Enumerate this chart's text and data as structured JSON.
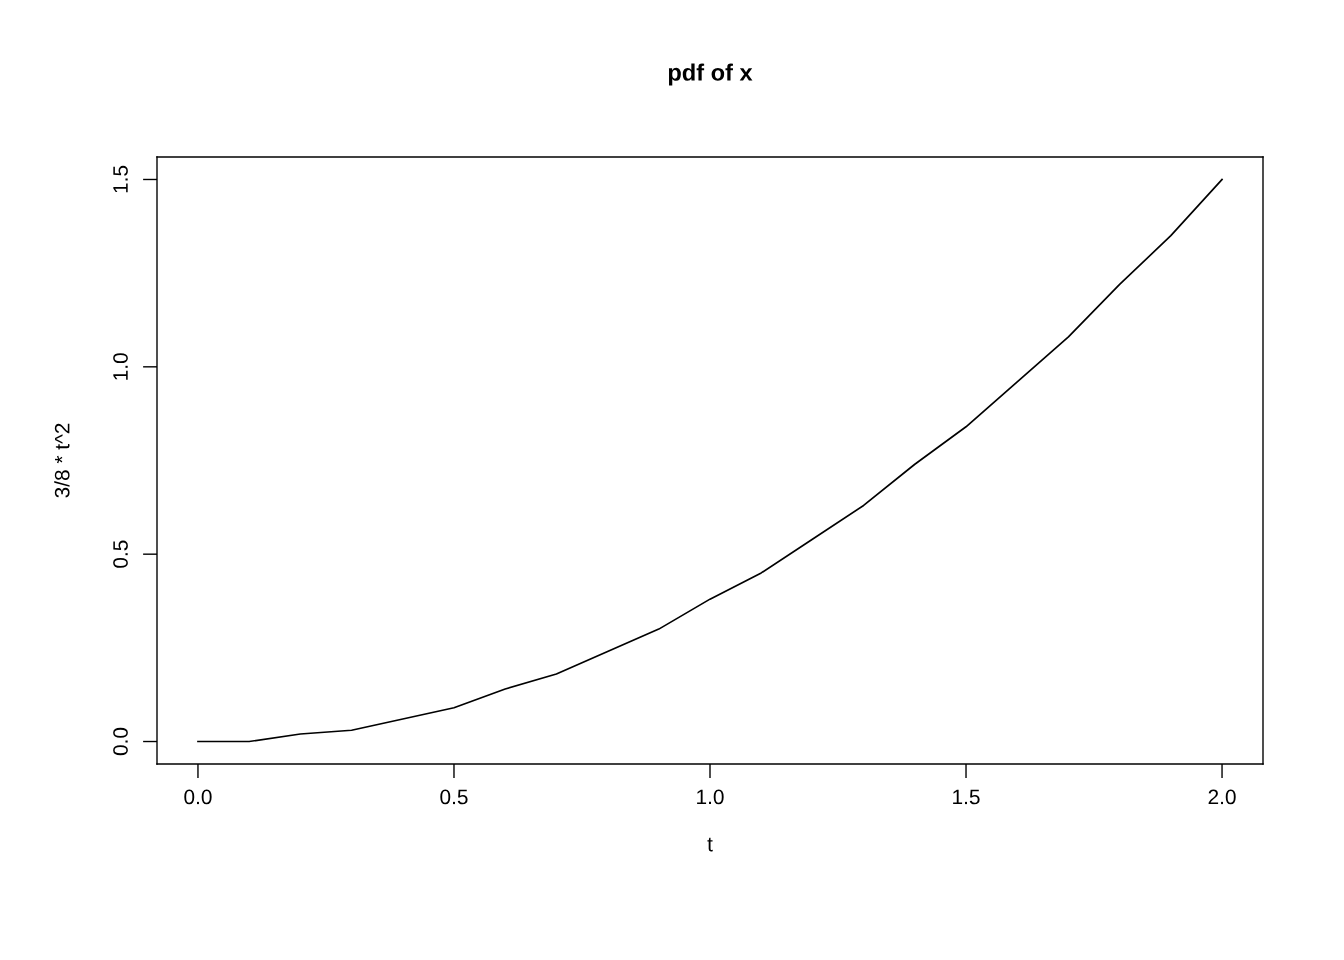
{
  "chart_data": {
    "type": "line",
    "title": "pdf of x",
    "xlabel": "t",
    "ylabel": "3/8 * t^2",
    "x": [
      0,
      0.1,
      0.2,
      0.3,
      0.4,
      0.5,
      0.6,
      0.7,
      0.8,
      0.9,
      1.0,
      1.1,
      1.2,
      1.3,
      1.4,
      1.5,
      1.6,
      1.7,
      1.8,
      1.9,
      2.0
    ],
    "series": [
      {
        "color": "#000000",
        "values": [
          0,
          0,
          0.02,
          0.03,
          0.06,
          0.09,
          0.14,
          0.18,
          0.24,
          0.3,
          0.38,
          0.45,
          0.54,
          0.63,
          0.74,
          0.84,
          0.96,
          1.08,
          1.22,
          1.35,
          1.5
        ]
      }
    ],
    "xlim": [
      -0.08,
      2.08
    ],
    "ylim": [
      -0.06,
      1.56
    ],
    "xticks": [
      {
        "value": 0,
        "label": "0.0"
      },
      0.5,
      {
        "value": 1,
        "label": "1.0"
      },
      1.5,
      {
        "value": 2,
        "label": "2.0"
      }
    ],
    "yticks": [
      {
        "value": 0,
        "label": "0.0"
      },
      0.5,
      {
        "value": 1,
        "label": "1.0"
      },
      1.5
    ],
    "grid": false,
    "marker": "none",
    "line_style": "solid"
  }
}
